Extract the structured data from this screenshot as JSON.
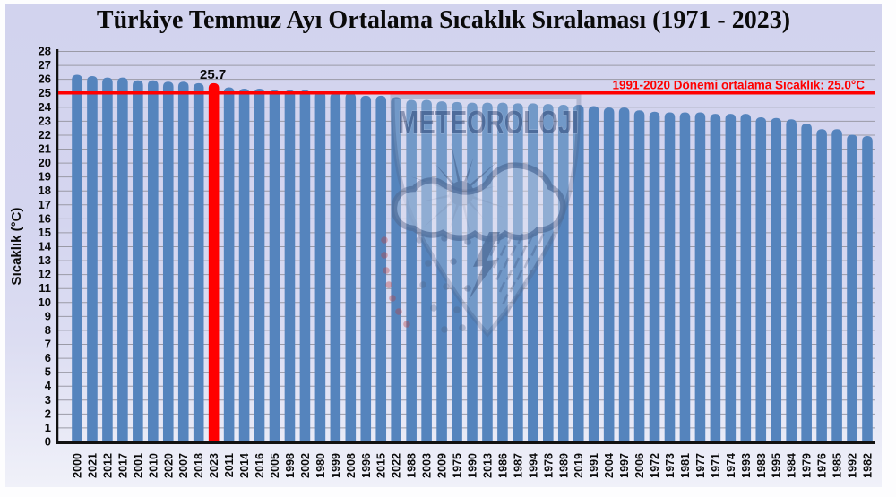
{
  "title": "Türkiye Temmuz Ayı Ortalama Sıcaklık Sıralaması (1971 - 2023)",
  "y_axis": {
    "label": "Sıcaklık (°C)",
    "min": 0,
    "max": 28,
    "tick_step": 1
  },
  "reference_line": {
    "value": 25.0,
    "label": "1991-2020 Dönemi ortalama Sıcaklık: 25.0°C",
    "color": "#ff0000"
  },
  "highlight": {
    "year": "2023",
    "value": 25.7,
    "label": "25.7",
    "color": "#ff0000"
  },
  "watermark": {
    "text": "METEOROLOJI"
  },
  "colors": {
    "bar": "#5584bd",
    "highlight_bar": "#ff0000",
    "background": "#d3d4ee",
    "gridline": "#9a9aa6",
    "axis": "#111111",
    "text": "#0a0a0a"
  },
  "chart_data": {
    "type": "bar",
    "title": "Türkiye Temmuz Ayı Ortalama Sıcaklık Sıralaması (1971 - 2023)",
    "xlabel": "",
    "ylabel": "Sıcaklık (°C)",
    "ylim": [
      0,
      28
    ],
    "grid": true,
    "categories": [
      "2000",
      "2021",
      "2012",
      "2017",
      "2001",
      "2010",
      "2020",
      "2007",
      "2018",
      "2023",
      "2011",
      "2014",
      "2016",
      "2005",
      "1998",
      "2002",
      "1980",
      "1999",
      "2008",
      "1996",
      "2015",
      "2022",
      "1988",
      "2003",
      "2009",
      "1975",
      "1990",
      "2013",
      "1986",
      "1987",
      "1994",
      "1978",
      "1989",
      "2019",
      "1991",
      "2004",
      "1997",
      "2006",
      "1972",
      "1973",
      "1981",
      "1977",
      "1971",
      "1974",
      "1993",
      "1983",
      "1995",
      "1984",
      "1979",
      "1976",
      "1985",
      "1992",
      "1982"
    ],
    "values": [
      26.3,
      26.2,
      26.1,
      26.1,
      25.9,
      25.9,
      25.8,
      25.8,
      25.7,
      25.7,
      25.4,
      25.3,
      25.3,
      25.2,
      25.2,
      25.2,
      25.1,
      25.0,
      25.0,
      24.8,
      24.8,
      24.7,
      24.5,
      24.5,
      24.4,
      24.35,
      24.3,
      24.3,
      24.3,
      24.25,
      24.25,
      24.2,
      24.15,
      24.15,
      24.05,
      23.95,
      23.95,
      23.75,
      23.65,
      23.6,
      23.6,
      23.6,
      23.5,
      23.5,
      23.5,
      23.25,
      23.2,
      23.1,
      22.8,
      22.4,
      22.4,
      22.0,
      21.9
    ],
    "highlighted_category": "2023",
    "annotations": [
      {
        "text": "25.7",
        "target": "2023"
      },
      {
        "text": "1991-2020 Dönemi ortalama Sıcaklık: 25.0°C",
        "y": 25.0
      }
    ],
    "reference_line_y": 25.0,
    "legend": null
  }
}
